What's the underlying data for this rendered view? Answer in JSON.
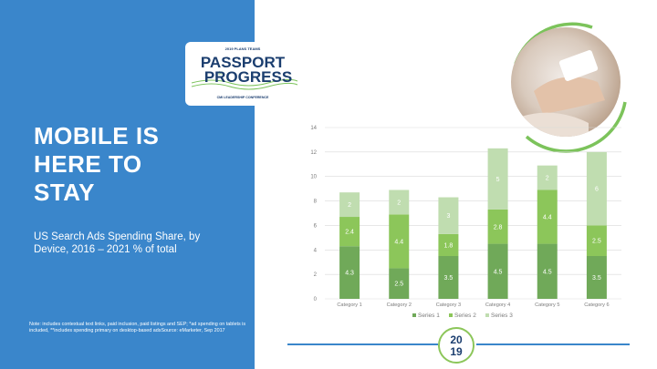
{
  "slide": {
    "headline_lines": [
      "MOBILE IS",
      "HERE TO",
      "STAY"
    ],
    "subtitle": "US Search Ads Spending Share, by Device, 2016 – 2021 % of total",
    "note": "Note: includes contextual text links, paid inclusion, paid listings and SEP; *ad spending on tablets is included, **includes spending primary on desktop-based adsSource: eMarketer, Sep 2017"
  },
  "logo": {
    "top_arc_text": "2019 PLANS TEAMS",
    "line1": "PASSPORT",
    "line2": "to",
    "line3": "PROGRESS",
    "bottom_arc_text": "CMI LEADERSHIP CONFERENCE"
  },
  "badge": {
    "line1": "20",
    "line2": "19"
  },
  "colors": {
    "panel_blue": "#3a86cb",
    "series1": "#70a959",
    "series2": "#8cc65a",
    "series3": "#c0ddb0",
    "logo_navy": "#1b3e6f",
    "accent_green": "#7cc35b"
  },
  "chart_data": {
    "type": "bar",
    "stacked": true,
    "categories": [
      "Category 1",
      "Category 2",
      "Category 3",
      "Category 4",
      "Category 5",
      "Category 6"
    ],
    "series": [
      {
        "name": "Series 1",
        "values": [
          4.3,
          2.5,
          3.5,
          4.5,
          4.5,
          3.5
        ]
      },
      {
        "name": "Series 2",
        "values": [
          2.4,
          4.4,
          1.8,
          2.8,
          4.4,
          2.5
        ]
      },
      {
        "name": "Series 3",
        "values": [
          2,
          2,
          3,
          5,
          2,
          6
        ]
      }
    ],
    "ylim": [
      0,
      14
    ],
    "yticks": [
      0,
      2,
      4,
      6,
      8,
      10,
      12,
      14
    ],
    "grid": true,
    "legend": "bottom"
  }
}
